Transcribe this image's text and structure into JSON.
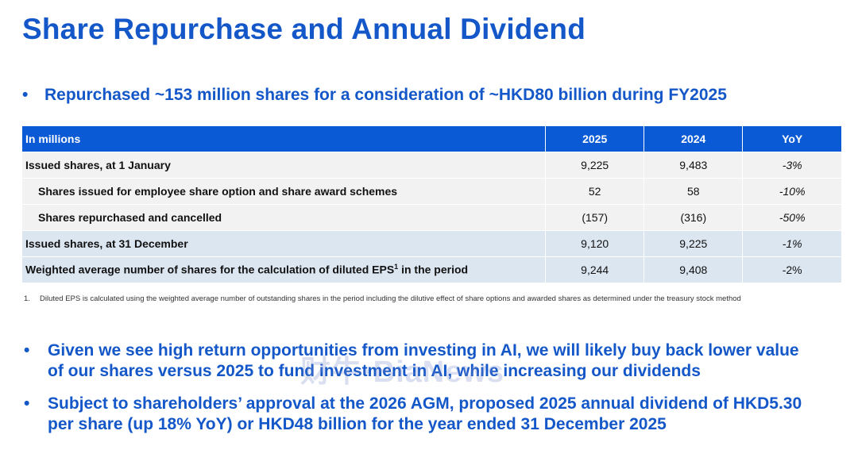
{
  "title": "Share Repurchase and Annual Dividend",
  "bullet_char": "•",
  "bullet1": "Repurchased ~153 million shares for a consideration of ~HKD80 billion during FY2025",
  "table": {
    "headers": [
      "In millions",
      "2025",
      "2024",
      "YoY"
    ],
    "rows": [
      {
        "label": "Issued shares, at 1 January",
        "v2025": "9,225",
        "v2024": "9,483",
        "yoy": "-3%"
      },
      {
        "label": "Shares issued for employee share option and share award schemes",
        "v2025": "52",
        "v2024": "58",
        "yoy": "-10%"
      },
      {
        "label": "Shares repurchased and cancelled",
        "v2025": "(157)",
        "v2024": "(316)",
        "yoy": "-50%"
      },
      {
        "label": "Issued shares, at 31 December",
        "v2025": "9,120",
        "v2024": "9,225",
        "yoy": "-1%"
      },
      {
        "label": "Weighted average number of shares for the calculation of diluted EPS",
        "sup": "1",
        "label_suffix": " in the period",
        "v2025": "9,244",
        "v2024": "9,408",
        "yoy": "-2%"
      }
    ]
  },
  "footnote": {
    "number": "1.",
    "text": "Diluted EPS is calculated using the weighted average number of outstanding shares in the period including the dilutive effect of share options and awarded shares as determined under the treasury stock method"
  },
  "bullet2": "Given we see high return opportunities from investing in AI, we will likely buy back lower value of our shares versus 2025 to fund investment in AI, while increasing our dividends",
  "bullet3": "Subject to shareholders’ approval at the 2026 AGM, proposed 2025 annual dividend of HKD5.30 per share (up 18% YoY) or HKD48 billion for the year ended 31 December 2025",
  "watermark": "财牛·BiaNews",
  "colors": {
    "brand_blue": "#1457c8",
    "header_blue": "#0a5ad6",
    "row_shade": "#dce6f1",
    "row_light": "#f2f2f2"
  }
}
